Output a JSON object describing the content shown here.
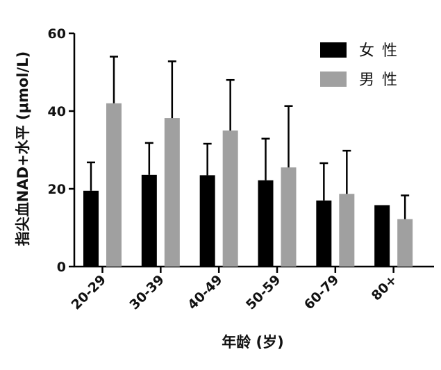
{
  "chart_data": {
    "type": "bar",
    "title": "",
    "xlabel": "年龄 (岁)",
    "ylabel": "指尖血NAD+水平 (μmol/L)",
    "ylim": [
      0,
      60
    ],
    "yticks": [
      0,
      20,
      40,
      60
    ],
    "categories": [
      "20-29",
      "30-39",
      "40-49",
      "50-59",
      "60-79",
      "80+"
    ],
    "series": [
      {
        "name": "女 性",
        "color": "#000000",
        "values": [
          19.5,
          23.6,
          23.5,
          22.2,
          17.0,
          15.8
        ],
        "error_upper": [
          26.8,
          31.8,
          31.6,
          32.9,
          26.6,
          null
        ]
      },
      {
        "name": "男 性",
        "color": "#a0a0a0",
        "values": [
          42.0,
          38.2,
          35.0,
          25.5,
          18.7,
          12.2
        ],
        "error_upper": [
          54.0,
          52.8,
          48.0,
          41.3,
          29.8,
          18.3
        ]
      }
    ],
    "legend_position": "top-right",
    "grid": false
  }
}
